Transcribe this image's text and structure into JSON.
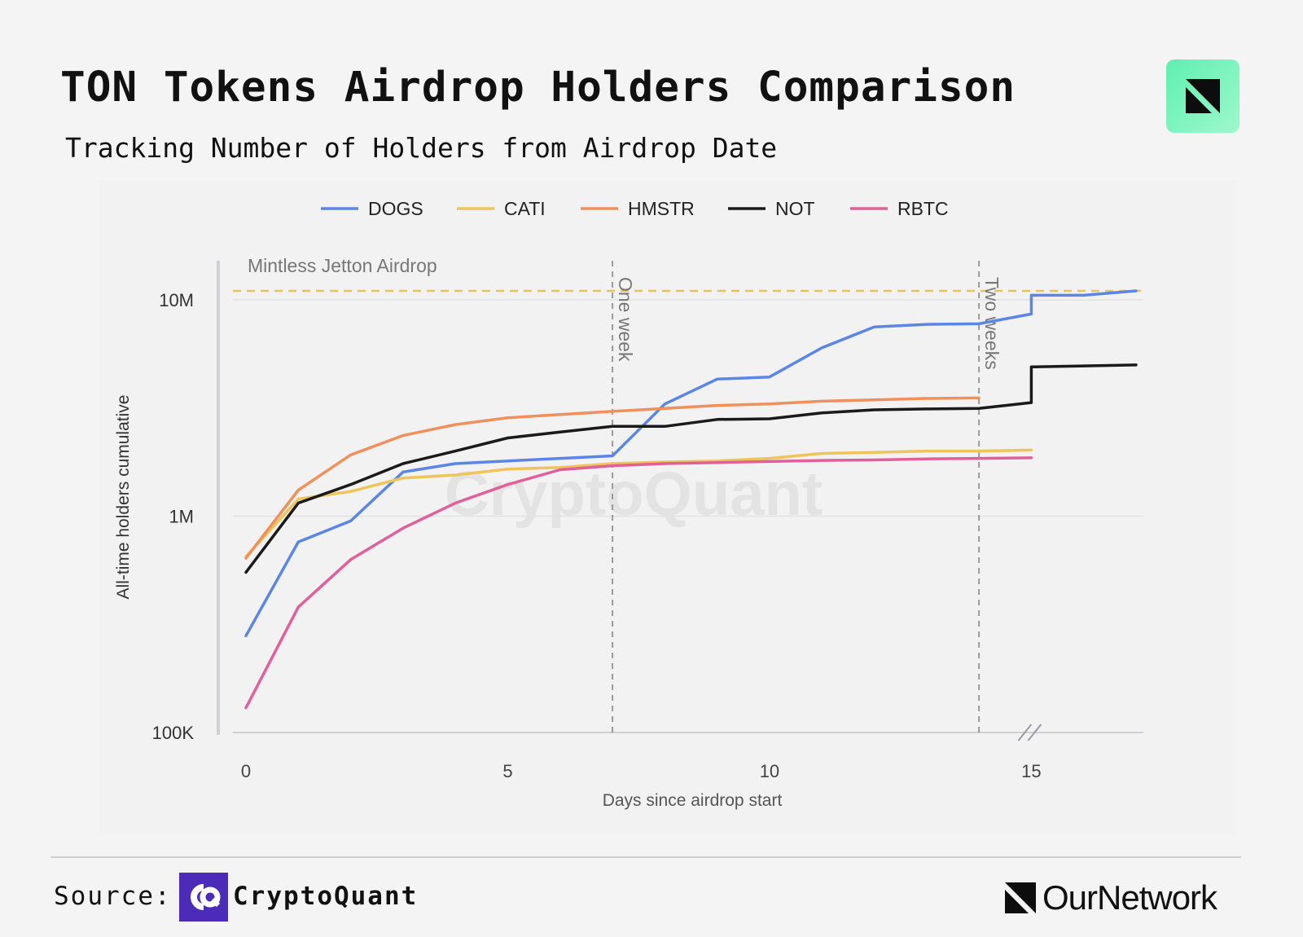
{
  "header": {
    "title": "TON Tokens Airdrop Holders Comparison",
    "subtitle": "Tracking Number of Holders from Airdrop Date"
  },
  "footer": {
    "source_label": "Source:",
    "source_name": "CryptoQuant",
    "publisher": "OurNetwork"
  },
  "icons": {
    "brand_badge": "ournetwork-logo-icon",
    "source_logo": "cryptoquant-logo-icon"
  },
  "chart_data": {
    "type": "line",
    "title": "",
    "watermark": "CryptoQuant",
    "xlabel": "Days since airdrop start",
    "ylabel": "All-time holders cumulative",
    "yscale": "log",
    "xlim": [
      0,
      17
    ],
    "ylim": [
      100000,
      15000000
    ],
    "x_ticks": [
      0,
      5,
      10,
      15
    ],
    "x_tick_labels": [
      "0",
      "5",
      "10",
      "15"
    ],
    "y_ticks": [
      100000,
      1000000,
      10000000
    ],
    "y_tick_labels": [
      "100K",
      "1M",
      "10M"
    ],
    "grid": true,
    "legend_position": "top-center",
    "axis_break_at": 15,
    "reference_lines": [
      {
        "orientation": "horizontal",
        "value": 11000000,
        "label": "Mintless Jetton Airdrop",
        "color": "#e6c45c"
      },
      {
        "orientation": "vertical",
        "value": 7,
        "label": "One week",
        "color": "#9a9a9a"
      },
      {
        "orientation": "vertical",
        "value": 14,
        "label": "Two weeks",
        "color": "#9a9a9a"
      }
    ],
    "series": [
      {
        "name": "DOGS",
        "color": "#5b86e5",
        "points": [
          [
            0,
            280000
          ],
          [
            1,
            760000
          ],
          [
            2,
            950000
          ],
          [
            3,
            1600000
          ],
          [
            4,
            1750000
          ],
          [
            5,
            1800000
          ],
          [
            6,
            1850000
          ],
          [
            7,
            1900000
          ],
          [
            8,
            3300000
          ],
          [
            9,
            4300000
          ],
          [
            10,
            4400000
          ],
          [
            11,
            6000000
          ],
          [
            12,
            7500000
          ],
          [
            13,
            7700000
          ],
          [
            14,
            7750000
          ],
          [
            15,
            8600000
          ],
          [
            15,
            10500000
          ],
          [
            16,
            10500000
          ],
          [
            17,
            11000000
          ]
        ]
      },
      {
        "name": "CATI",
        "color": "#efc45a",
        "points": [
          [
            0,
            650000
          ],
          [
            1,
            1200000
          ],
          [
            2,
            1300000
          ],
          [
            3,
            1500000
          ],
          [
            4,
            1550000
          ],
          [
            5,
            1650000
          ],
          [
            6,
            1680000
          ],
          [
            7,
            1750000
          ],
          [
            8,
            1780000
          ],
          [
            9,
            1800000
          ],
          [
            10,
            1850000
          ],
          [
            11,
            1950000
          ],
          [
            12,
            1970000
          ],
          [
            13,
            2000000
          ],
          [
            14,
            2000000
          ],
          [
            15,
            2020000
          ]
        ]
      },
      {
        "name": "HMSTR",
        "color": "#f0905a",
        "points": [
          [
            0,
            640000
          ],
          [
            1,
            1320000
          ],
          [
            2,
            1920000
          ],
          [
            3,
            2360000
          ],
          [
            4,
            2650000
          ],
          [
            5,
            2850000
          ],
          [
            6,
            2950000
          ],
          [
            7,
            3050000
          ],
          [
            8,
            3150000
          ],
          [
            9,
            3250000
          ],
          [
            10,
            3300000
          ],
          [
            11,
            3400000
          ],
          [
            12,
            3450000
          ],
          [
            13,
            3500000
          ],
          [
            14,
            3520000
          ]
        ]
      },
      {
        "name": "NOT",
        "color": "#1a1a1a",
        "points": [
          [
            0,
            550000
          ],
          [
            1,
            1150000
          ],
          [
            2,
            1400000
          ],
          [
            3,
            1750000
          ],
          [
            4,
            2000000
          ],
          [
            5,
            2300000
          ],
          [
            6,
            2450000
          ],
          [
            7,
            2600000
          ],
          [
            8,
            2600000
          ],
          [
            9,
            2800000
          ],
          [
            10,
            2820000
          ],
          [
            11,
            3000000
          ],
          [
            12,
            3100000
          ],
          [
            13,
            3130000
          ],
          [
            14,
            3150000
          ],
          [
            15,
            3350000
          ],
          [
            15,
            4900000
          ],
          [
            16,
            4950000
          ],
          [
            17,
            5000000
          ]
        ]
      },
      {
        "name": "RBTC",
        "color": "#e2609a",
        "points": [
          [
            0,
            130000
          ],
          [
            1,
            380000
          ],
          [
            2,
            630000
          ],
          [
            3,
            880000
          ],
          [
            4,
            1150000
          ],
          [
            5,
            1400000
          ],
          [
            6,
            1640000
          ],
          [
            7,
            1710000
          ],
          [
            8,
            1750000
          ],
          [
            9,
            1770000
          ],
          [
            10,
            1790000
          ],
          [
            11,
            1810000
          ],
          [
            12,
            1820000
          ],
          [
            13,
            1840000
          ],
          [
            14,
            1850000
          ],
          [
            15,
            1860000
          ]
        ]
      }
    ]
  }
}
